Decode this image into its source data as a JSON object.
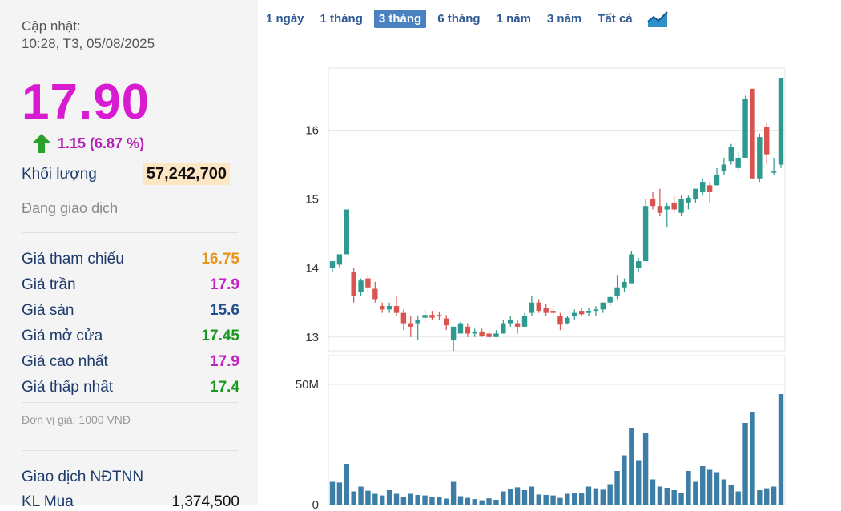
{
  "quote": {
    "update_label": "Cập nhật:",
    "update_time": "10:28, T3, 05/08/2025",
    "price": "17.90",
    "change": "1.15 (6.87 %)",
    "volume_label": "Khối lượng",
    "volume": "57,242,700",
    "status": "Đang giao dịch",
    "unit": "Đơn vị giá: 1000 VNĐ",
    "foreign_title": "Giao dịch NĐTNN",
    "buy_label": "KL Mua",
    "buy_value": "1,374,500"
  },
  "stats": [
    {
      "label": "Giá tham chiếu",
      "value": "16.75",
      "color": "#e8951c"
    },
    {
      "label": "Giá trần",
      "value": "17.9",
      "color": "#c41fc2"
    },
    {
      "label": "Giá sàn",
      "value": "15.6",
      "color": "#1d4f8c"
    },
    {
      "label": "Giá mở cửa",
      "value": "17.45",
      "color": "#1a9a1f"
    },
    {
      "label": "Giá cao nhất",
      "value": "17.9",
      "color": "#c41fc2"
    },
    {
      "label": "Giá thấp nhất",
      "value": "17.4",
      "color": "#1a9a1f"
    }
  ],
  "colors": {
    "up": "#2c9a8f",
    "down": "#d9534f",
    "volume": "#3d7ea6",
    "accent": "#d81bd0"
  },
  "ranges": [
    "1 ngày",
    "1 tháng",
    "3 tháng",
    "6 tháng",
    "1 năm",
    "3 năm",
    "Tất cả"
  ],
  "active_range": "3 tháng",
  "chart_icon": "area-chart-icon",
  "chart_data": {
    "type": "candlestick",
    "price_ticks": [
      "13",
      "14",
      "15",
      "16"
    ],
    "price_ylim": [
      12.8,
      16.9
    ],
    "volume_ticks": [
      "0",
      "50M"
    ],
    "volume_ylim": [
      0,
      62
    ],
    "candles": [
      {
        "o": 14.0,
        "h": 14.1,
        "l": 13.95,
        "c": 14.1
      },
      {
        "o": 14.05,
        "h": 14.2,
        "l": 14.0,
        "c": 14.2
      },
      {
        "o": 14.2,
        "h": 14.85,
        "l": 14.2,
        "c": 14.85
      },
      {
        "o": 13.95,
        "h": 14.0,
        "l": 13.5,
        "c": 13.6
      },
      {
        "o": 13.65,
        "h": 13.85,
        "l": 13.6,
        "c": 13.82
      },
      {
        "o": 13.85,
        "h": 13.9,
        "l": 13.65,
        "c": 13.72
      },
      {
        "o": 13.7,
        "h": 13.8,
        "l": 13.5,
        "c": 13.55
      },
      {
        "o": 13.45,
        "h": 13.5,
        "l": 13.35,
        "c": 13.4
      },
      {
        "o": 13.4,
        "h": 13.5,
        "l": 13.35,
        "c": 13.45
      },
      {
        "o": 13.45,
        "h": 13.6,
        "l": 13.3,
        "c": 13.35
      },
      {
        "o": 13.35,
        "h": 13.4,
        "l": 13.1,
        "c": 13.2
      },
      {
        "o": 13.2,
        "h": 13.3,
        "l": 13.0,
        "c": 13.15
      },
      {
        "o": 13.2,
        "h": 13.3,
        "l": 12.95,
        "c": 13.25
      },
      {
        "o": 13.28,
        "h": 13.4,
        "l": 13.22,
        "c": 13.32
      },
      {
        "o": 13.32,
        "h": 13.38,
        "l": 13.25,
        "c": 13.28
      },
      {
        "o": 13.32,
        "h": 13.37,
        "l": 13.25,
        "c": 13.3
      },
      {
        "o": 13.27,
        "h": 13.32,
        "l": 13.1,
        "c": 13.17
      },
      {
        "o": 12.95,
        "h": 13.15,
        "l": 12.8,
        "c": 13.15
      },
      {
        "o": 13.05,
        "h": 13.22,
        "l": 13.05,
        "c": 13.2
      },
      {
        "o": 13.15,
        "h": 13.2,
        "l": 13.0,
        "c": 13.05
      },
      {
        "o": 13.05,
        "h": 13.12,
        "l": 13.0,
        "c": 13.08
      },
      {
        "o": 13.08,
        "h": 13.12,
        "l": 13.0,
        "c": 13.02
      },
      {
        "o": 13.05,
        "h": 13.1,
        "l": 12.98,
        "c": 13.0
      },
      {
        "o": 13.0,
        "h": 13.1,
        "l": 13.0,
        "c": 13.05
      },
      {
        "o": 13.05,
        "h": 13.25,
        "l": 13.05,
        "c": 13.2
      },
      {
        "o": 13.2,
        "h": 13.3,
        "l": 13.15,
        "c": 13.25
      },
      {
        "o": 13.2,
        "h": 13.25,
        "l": 13.05,
        "c": 13.15
      },
      {
        "o": 13.15,
        "h": 13.35,
        "l": 13.15,
        "c": 13.3
      },
      {
        "o": 13.35,
        "h": 13.6,
        "l": 13.3,
        "c": 13.5
      },
      {
        "o": 13.5,
        "h": 13.55,
        "l": 13.35,
        "c": 13.38
      },
      {
        "o": 13.42,
        "h": 13.48,
        "l": 13.3,
        "c": 13.35
      },
      {
        "o": 13.38,
        "h": 13.45,
        "l": 13.3,
        "c": 13.35
      },
      {
        "o": 13.3,
        "h": 13.35,
        "l": 13.1,
        "c": 13.18
      },
      {
        "o": 13.2,
        "h": 13.3,
        "l": 13.18,
        "c": 13.28
      },
      {
        "o": 13.3,
        "h": 13.4,
        "l": 13.25,
        "c": 13.35
      },
      {
        "o": 13.38,
        "h": 13.42,
        "l": 13.3,
        "c": 13.33
      },
      {
        "o": 13.35,
        "h": 13.42,
        "l": 13.3,
        "c": 13.38
      },
      {
        "o": 13.38,
        "h": 13.45,
        "l": 13.3,
        "c": 13.4
      },
      {
        "o": 13.4,
        "h": 13.5,
        "l": 13.35,
        "c": 13.5
      },
      {
        "o": 13.5,
        "h": 13.6,
        "l": 13.45,
        "c": 13.58
      },
      {
        "o": 13.6,
        "h": 13.9,
        "l": 13.55,
        "c": 13.72
      },
      {
        "o": 13.72,
        "h": 13.85,
        "l": 13.65,
        "c": 13.8
      },
      {
        "o": 13.78,
        "h": 14.25,
        "l": 13.78,
        "c": 14.2
      },
      {
        "o": 14.0,
        "h": 14.15,
        "l": 13.95,
        "c": 14.1
      },
      {
        "o": 14.1,
        "h": 15.0,
        "l": 14.1,
        "c": 14.9
      },
      {
        "o": 15.0,
        "h": 15.1,
        "l": 14.85,
        "c": 14.9
      },
      {
        "o": 14.9,
        "h": 15.15,
        "l": 14.75,
        "c": 14.8
      },
      {
        "o": 14.85,
        "h": 14.95,
        "l": 14.6,
        "c": 14.9
      },
      {
        "o": 14.95,
        "h": 15.05,
        "l": 14.8,
        "c": 14.85
      },
      {
        "o": 14.8,
        "h": 15.05,
        "l": 14.75,
        "c": 15.0
      },
      {
        "o": 14.95,
        "h": 15.05,
        "l": 14.85,
        "c": 15.02
      },
      {
        "o": 15.0,
        "h": 15.15,
        "l": 14.95,
        "c": 15.15
      },
      {
        "o": 15.1,
        "h": 15.3,
        "l": 15.05,
        "c": 15.25
      },
      {
        "o": 15.2,
        "h": 15.25,
        "l": 14.95,
        "c": 15.1
      },
      {
        "o": 15.2,
        "h": 15.45,
        "l": 15.2,
        "c": 15.35
      },
      {
        "o": 15.4,
        "h": 15.6,
        "l": 15.35,
        "c": 15.5
      },
      {
        "o": 15.55,
        "h": 15.8,
        "l": 15.5,
        "c": 15.75
      },
      {
        "o": 15.45,
        "h": 15.7,
        "l": 15.4,
        "c": 15.6
      },
      {
        "o": 15.6,
        "h": 16.5,
        "l": 15.6,
        "c": 16.45
      },
      {
        "o": 16.6,
        "h": 16.6,
        "l": 15.3,
        "c": 15.3
      },
      {
        "o": 15.3,
        "h": 15.95,
        "l": 15.25,
        "c": 15.9
      },
      {
        "o": 16.05,
        "h": 16.1,
        "l": 15.5,
        "c": 15.65
      },
      {
        "o": 15.4,
        "h": 15.6,
        "l": 15.35,
        "c": 15.4
      },
      {
        "o": 15.5,
        "h": 16.75,
        "l": 15.45,
        "c": 16.75
      }
    ],
    "volumes": [
      9.5,
      9.2,
      17,
      5.5,
      7.5,
      5.8,
      4.5,
      3.8,
      6,
      4.5,
      3.2,
      4.5,
      4,
      3.8,
      3,
      3.2,
      2.5,
      9.5,
      3.5,
      2.8,
      2.3,
      1.8,
      2.6,
      2,
      5.5,
      6.5,
      7.2,
      6,
      7.5,
      4.2,
      4,
      3.8,
      2.8,
      4.5,
      5,
      4.8,
      7.5,
      6.8,
      6.2,
      8.5,
      14,
      20.5,
      32,
      18.5,
      30,
      10.5,
      7.5,
      7,
      6,
      4.8,
      14,
      9.5,
      16,
      14.5,
      13.5,
      10.5,
      8,
      5.5,
      34,
      38.5,
      6,
      6.8,
      7.5,
      46
    ]
  }
}
